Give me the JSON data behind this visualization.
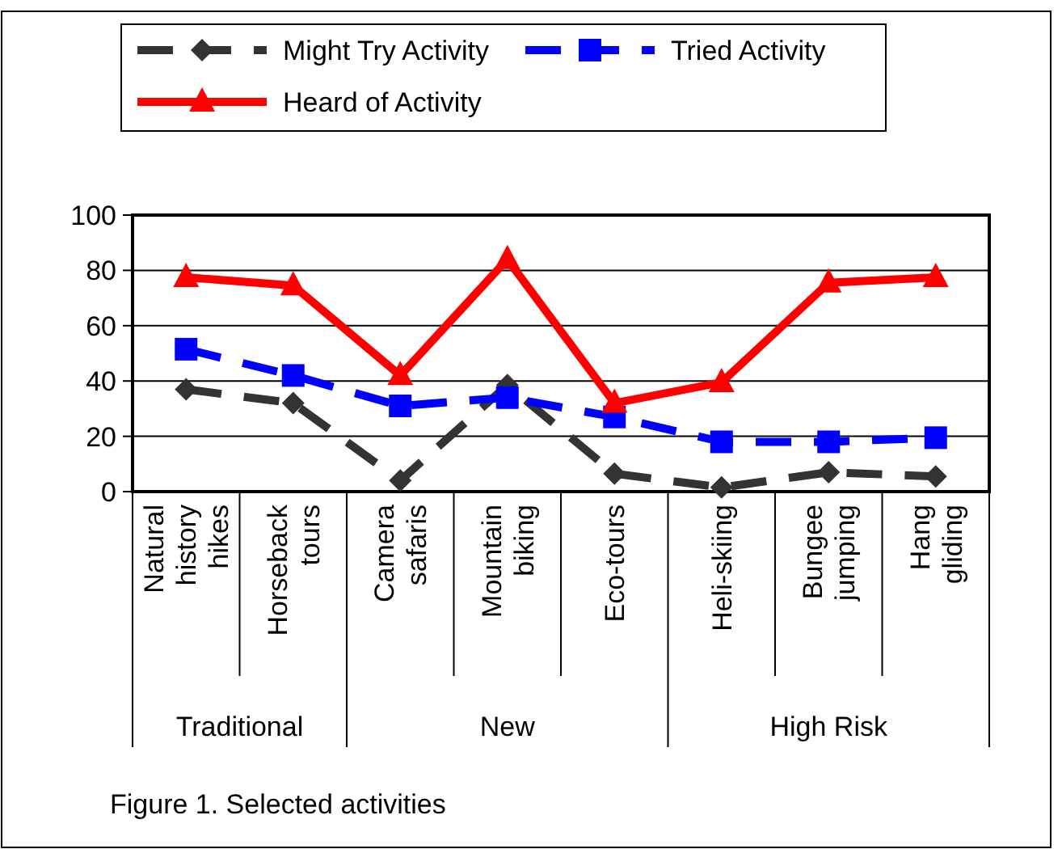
{
  "chart_data": {
    "type": "line",
    "categories": [
      "Natural history hikes",
      "Horseback tours",
      "Camera safaris",
      "Mountain biking",
      "Eco-tours",
      "Heli-skiing",
      "Bungee jumping",
      "Hang gliding"
    ],
    "series": [
      {
        "name": "Might Try Activity",
        "color": "#333333",
        "marker": "diamond",
        "line_style": "dashed",
        "values": [
          37,
          32,
          4,
          38.5,
          6.5,
          1.5,
          7,
          5.5
        ]
      },
      {
        "name": "Tried Activity",
        "color": "#0000ff",
        "marker": "square",
        "line_style": "dashed",
        "values": [
          51.5,
          42,
          31,
          34,
          27,
          18,
          18,
          19.5
        ]
      },
      {
        "name": "Heard of Activity",
        "color": "#ff0000",
        "marker": "triangle",
        "line_style": "solid",
        "values": [
          77.5,
          74.5,
          42,
          84,
          32,
          39.5,
          75.5,
          77.5
        ]
      }
    ],
    "ylim": [
      0,
      100
    ],
    "yticks": [
      0,
      20,
      40,
      60,
      80,
      100
    ],
    "grid": "y",
    "legend": "top",
    "annotations": [
      "Traditional",
      "New",
      "High Risk",
      "Figure 1. Selected activities"
    ]
  }
}
